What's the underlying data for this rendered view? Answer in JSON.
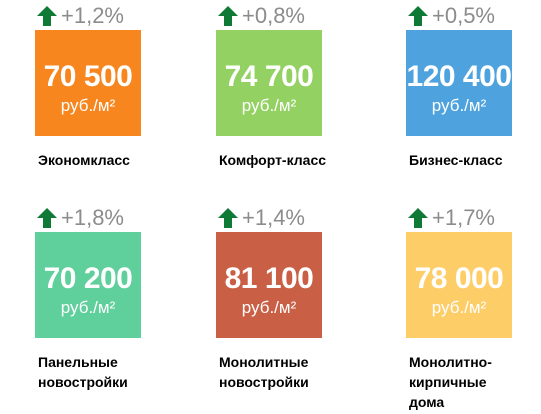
{
  "cards": [
    {
      "change": "+1,2%",
      "price": "70 500",
      "unit": "руб./м²",
      "label_lines": [
        "Экономкласс"
      ],
      "color": "#f7861f",
      "arrow_icon": "up-arrow-icon"
    },
    {
      "change": "+0,8%",
      "price": "74 700",
      "unit": "руб./м²",
      "label_lines": [
        "Комфорт-класс"
      ],
      "color": "#94d163",
      "arrow_icon": "up-arrow-icon"
    },
    {
      "change": "+0,5%",
      "price": "120 400",
      "unit": "руб./м²",
      "label_lines": [
        "Бизнес-класс"
      ],
      "color": "#4ea2dd",
      "arrow_icon": "up-arrow-icon"
    },
    {
      "change": "+1,8%",
      "price": "70 200",
      "unit": "руб./м²",
      "label_lines": [
        "Панельные",
        "новостройки"
      ],
      "color": "#5fcf9c",
      "arrow_icon": "up-arrow-icon"
    },
    {
      "change": "+1,4%",
      "price": "81 100",
      "unit": "руб./м²",
      "label_lines": [
        "Монолитные",
        "новостройки"
      ],
      "color": "#c95f45",
      "arrow_icon": "up-arrow-icon"
    },
    {
      "change": "+1,7%",
      "price": "78 000",
      "unit": "руб./м²",
      "label_lines": [
        "Монолитно-",
        "кирпичные",
        "дома"
      ],
      "color": "#fdcd68",
      "arrow_icon": "up-arrow-icon"
    }
  ],
  "colors": {
    "arrow": "#0f7a36",
    "change_text": "#8c8c8c"
  }
}
